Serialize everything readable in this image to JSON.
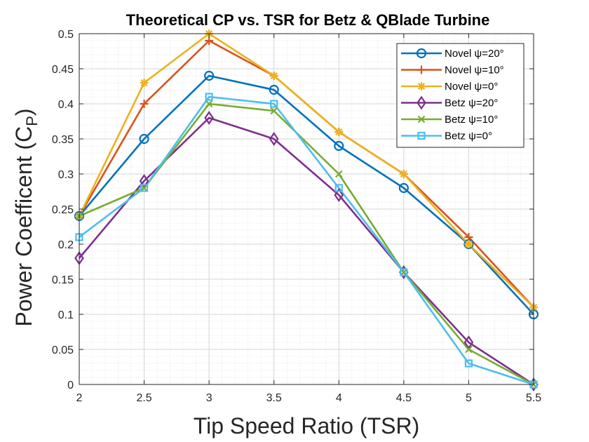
{
  "chart_data": {
    "type": "line",
    "title": "Theoretical CP vs. TSR for Betz & QBlade Turbine",
    "xlabel": "Tip Speed Ratio (TSR)",
    "ylabel": "Power Coefficent (C",
    "ylabel_sub": "P",
    "ylabel_end": ")",
    "xlim": [
      2,
      5.5
    ],
    "ylim": [
      0,
      0.5
    ],
    "grid": true,
    "minor_grid": true,
    "legend_position": "top-right",
    "xticks": [
      2,
      2.5,
      3,
      3.5,
      4,
      4.5,
      5,
      5.5
    ],
    "xtick_labels": [
      "2",
      "2.5",
      "3",
      "3.5",
      "4",
      "4.5",
      "5",
      "5.5"
    ],
    "yticks": [
      0,
      0.05,
      0.1,
      0.15,
      0.2,
      0.25,
      0.3,
      0.35,
      0.4,
      0.45,
      0.5
    ],
    "ytick_labels": [
      "0",
      "0.05",
      "0.1",
      "0.15",
      "0.2",
      "0.25",
      "0.3",
      "0.35",
      "0.4",
      "0.45",
      "0.5"
    ],
    "x": [
      2,
      2.5,
      3,
      3.5,
      4,
      4.5,
      5,
      5.5
    ],
    "series": [
      {
        "name": "Novel ψ=20°",
        "color": "#0072BD",
        "marker": "circle",
        "values": [
          0.24,
          0.35,
          0.44,
          0.42,
          0.34,
          0.28,
          0.2,
          0.1
        ]
      },
      {
        "name": "Novel ψ=10°",
        "color": "#D95319",
        "marker": "plus",
        "values": [
          0.24,
          0.4,
          0.49,
          0.44,
          0.36,
          0.3,
          0.21,
          0.11
        ]
      },
      {
        "name": "Novel ψ=0°",
        "color": "#EDB120",
        "marker": "asterisk",
        "values": [
          0.24,
          0.43,
          0.5,
          0.44,
          0.36,
          0.3,
          0.2,
          0.11
        ]
      },
      {
        "name": "Betz ψ=20°",
        "color": "#7E2F8E",
        "marker": "diamond",
        "values": [
          0.18,
          0.29,
          0.38,
          0.35,
          0.27,
          0.16,
          0.06,
          0.0
        ]
      },
      {
        "name": "Betz ψ=10°",
        "color": "#77AC30",
        "marker": "x",
        "values": [
          0.24,
          0.28,
          0.4,
          0.39,
          0.3,
          0.16,
          0.05,
          0.0
        ]
      },
      {
        "name": "Betz ψ=0°",
        "color": "#4DBEEE",
        "marker": "square",
        "values": [
          0.21,
          0.28,
          0.41,
          0.4,
          0.28,
          0.16,
          0.03,
          0.0
        ]
      }
    ]
  }
}
